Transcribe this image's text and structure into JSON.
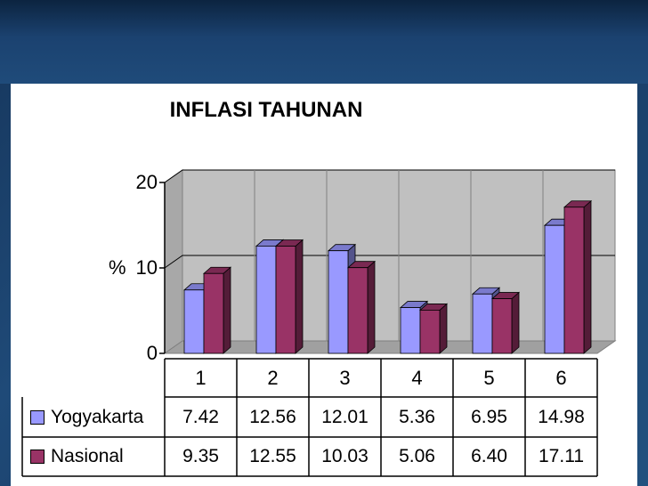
{
  "chart_data": {
    "type": "bar",
    "title": "INFLASI TAHUNAN",
    "ylabel": "%",
    "ylim": [
      0,
      20
    ],
    "yticks": [
      0,
      10,
      20
    ],
    "categories": [
      "1",
      "2",
      "3",
      "4",
      "5",
      "6"
    ],
    "series": [
      {
        "name": "Yogyakarta",
        "color": "#9999ff",
        "values": [
          7.42,
          12.56,
          12.01,
          5.36,
          6.95,
          14.98
        ],
        "labels": [
          "7.42",
          "12.56",
          "12.01",
          "5.36",
          "6.95",
          "14.98"
        ]
      },
      {
        "name": "Nasional",
        "color": "#993366",
        "values": [
          9.35,
          12.55,
          10.03,
          5.06,
          6.4,
          17.11
        ],
        "labels": [
          "9.35",
          "12.55",
          "10.03",
          "5.06",
          "6.40",
          "17.11"
        ]
      }
    ],
    "grid": true,
    "legend": "data-table-left",
    "style": "3d-column-with-data-table"
  }
}
